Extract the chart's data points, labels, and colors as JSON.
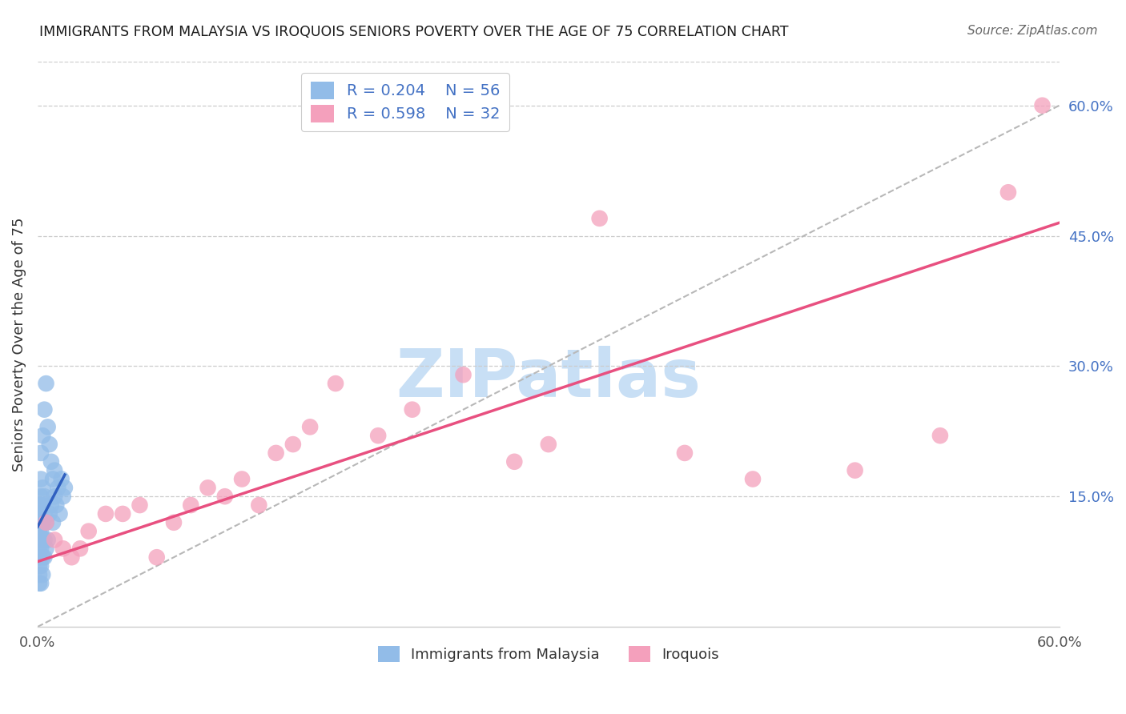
{
  "title": "IMMIGRANTS FROM MALAYSIA VS IROQUOIS SENIORS POVERTY OVER THE AGE OF 75 CORRELATION CHART",
  "source": "Source: ZipAtlas.com",
  "ylabel": "Seniors Poverty Over the Age of 75",
  "xlim": [
    0,
    0.6
  ],
  "ylim": [
    0,
    0.65
  ],
  "xtick_positions": [
    0.0,
    0.1,
    0.2,
    0.3,
    0.4,
    0.5,
    0.6
  ],
  "xtick_labels": [
    "0.0%",
    "",
    "",
    "",
    "",
    "",
    "60.0%"
  ],
  "yticks_right": [
    0.15,
    0.3,
    0.45,
    0.6
  ],
  "ytick_labels_right": [
    "15.0%",
    "30.0%",
    "45.0%",
    "60.0%"
  ],
  "legend_r1": "R = 0.204",
  "legend_n1": "N = 56",
  "legend_r2": "R = 0.598",
  "legend_n2": "N = 32",
  "blue_color": "#92bce8",
  "pink_color": "#f4a0bc",
  "blue_line_color": "#3060c0",
  "pink_line_color": "#e85080",
  "watermark_text": "ZIPatlas",
  "watermark_color": "#c8dff5",
  "blue_scatter_x": [
    0.001,
    0.001,
    0.001,
    0.001,
    0.001,
    0.001,
    0.001,
    0.001,
    0.001,
    0.001,
    0.001,
    0.001,
    0.001,
    0.001,
    0.001,
    0.002,
    0.002,
    0.002,
    0.002,
    0.002,
    0.002,
    0.002,
    0.002,
    0.002,
    0.002,
    0.003,
    0.003,
    0.003,
    0.003,
    0.003,
    0.003,
    0.003,
    0.004,
    0.004,
    0.004,
    0.004,
    0.004,
    0.005,
    0.005,
    0.005,
    0.006,
    0.006,
    0.007,
    0.007,
    0.008,
    0.008,
    0.009,
    0.009,
    0.01,
    0.01,
    0.011,
    0.012,
    0.013,
    0.014,
    0.015,
    0.016
  ],
  "blue_scatter_y": [
    0.05,
    0.06,
    0.07,
    0.08,
    0.08,
    0.09,
    0.1,
    0.1,
    0.11,
    0.11,
    0.12,
    0.12,
    0.13,
    0.13,
    0.14,
    0.05,
    0.07,
    0.09,
    0.1,
    0.11,
    0.12,
    0.14,
    0.15,
    0.17,
    0.2,
    0.06,
    0.08,
    0.1,
    0.12,
    0.14,
    0.16,
    0.22,
    0.08,
    0.1,
    0.13,
    0.15,
    0.25,
    0.09,
    0.12,
    0.28,
    0.1,
    0.23,
    0.13,
    0.21,
    0.14,
    0.19,
    0.12,
    0.17,
    0.15,
    0.18,
    0.14,
    0.16,
    0.13,
    0.17,
    0.15,
    0.16
  ],
  "pink_scatter_x": [
    0.005,
    0.01,
    0.015,
    0.02,
    0.025,
    0.03,
    0.04,
    0.05,
    0.06,
    0.07,
    0.08,
    0.09,
    0.1,
    0.11,
    0.12,
    0.13,
    0.14,
    0.15,
    0.16,
    0.175,
    0.2,
    0.22,
    0.25,
    0.28,
    0.3,
    0.33,
    0.38,
    0.42,
    0.48,
    0.53,
    0.57,
    0.59
  ],
  "pink_scatter_y": [
    0.12,
    0.1,
    0.09,
    0.08,
    0.09,
    0.11,
    0.13,
    0.13,
    0.14,
    0.08,
    0.12,
    0.14,
    0.16,
    0.15,
    0.17,
    0.14,
    0.2,
    0.21,
    0.23,
    0.28,
    0.22,
    0.25,
    0.29,
    0.19,
    0.21,
    0.47,
    0.2,
    0.17,
    0.18,
    0.22,
    0.5,
    0.6
  ],
  "blue_line_x": [
    0.0,
    0.016
  ],
  "blue_line_y": [
    0.115,
    0.175
  ],
  "pink_line_x": [
    0.0,
    0.6
  ],
  "pink_line_y": [
    0.075,
    0.465
  ]
}
